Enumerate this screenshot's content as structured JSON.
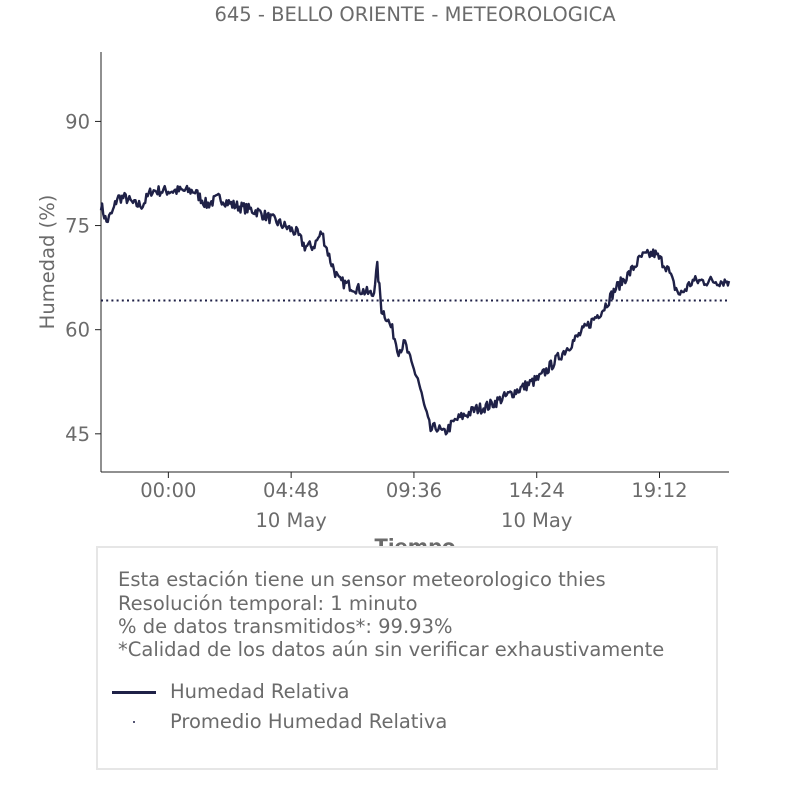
{
  "chart_data": {
    "type": "line",
    "title": "645 - BELLO ORIENTE - METEOROLOGICA",
    "xlabel": "Tiempo",
    "ylabel": "Humedad (%)",
    "ylim": [
      39.5,
      100
    ],
    "xlim": [
      "2023-05-09 21:22",
      "2023-05-10 21:55"
    ],
    "y_ticks": [
      45,
      60,
      75,
      90
    ],
    "y_tick_labels": [
      "45",
      "60",
      "75",
      "90"
    ],
    "x_ticks": [
      {
        "at": "2023-05-10 00:00",
        "label": "00:00",
        "sub": ""
      },
      {
        "at": "2023-05-10 04:48",
        "label": "04:48",
        "sub": "10 May"
      },
      {
        "at": "2023-05-10 09:36",
        "label": "09:36",
        "sub": ""
      },
      {
        "at": "2023-05-10 14:24",
        "label": "14:24",
        "sub": "10 May"
      },
      {
        "at": "2023-05-10 19:12",
        "label": "19:12",
        "sub": ""
      }
    ],
    "grid": false,
    "series": [
      {
        "name": "Humedad Relativa",
        "color": "#1f2147",
        "style": "solid",
        "x": [
          "2023-05-09 21:22",
          "2023-05-09 21:35",
          "2023-05-09 21:50",
          "2023-05-09 22:00",
          "2023-05-09 22:20",
          "2023-05-09 22:40",
          "2023-05-09 23:00",
          "2023-05-09 23:20",
          "2023-05-09 23:40",
          "2023-05-10 00:00",
          "2023-05-10 00:30",
          "2023-05-10 01:00",
          "2023-05-10 01:30",
          "2023-05-10 02:00",
          "2023-05-10 02:30",
          "2023-05-10 03:00",
          "2023-05-10 03:30",
          "2023-05-10 04:00",
          "2023-05-10 04:30",
          "2023-05-10 05:00",
          "2023-05-10 05:20",
          "2023-05-10 05:40",
          "2023-05-10 06:00",
          "2023-05-10 06:20",
          "2023-05-10 06:40",
          "2023-05-10 07:00",
          "2023-05-10 07:20",
          "2023-05-10 07:40",
          "2023-05-10 08:00",
          "2023-05-10 08:10",
          "2023-05-10 08:20",
          "2023-05-10 08:30",
          "2023-05-10 08:45",
          "2023-05-10 09:00",
          "2023-05-10 09:15",
          "2023-05-10 09:30",
          "2023-05-10 09:45",
          "2023-05-10 10:00",
          "2023-05-10 10:15",
          "2023-05-10 10:30",
          "2023-05-10 10:45",
          "2023-05-10 11:00",
          "2023-05-10 11:15",
          "2023-05-10 11:30",
          "2023-05-10 11:45",
          "2023-05-10 12:00",
          "2023-05-10 12:30",
          "2023-05-10 13:00",
          "2023-05-10 13:30",
          "2023-05-10 14:00",
          "2023-05-10 14:30",
          "2023-05-10 15:00",
          "2023-05-10 15:30",
          "2023-05-10 16:00",
          "2023-05-10 16:30",
          "2023-05-10 17:00",
          "2023-05-10 17:30",
          "2023-05-10 18:00",
          "2023-05-10 18:30",
          "2023-05-10 19:00",
          "2023-05-10 19:30",
          "2023-05-10 19:45",
          "2023-05-10 20:00",
          "2023-05-10 20:15",
          "2023-05-10 20:30",
          "2023-05-10 20:45",
          "2023-05-10 21:00",
          "2023-05-10 21:15",
          "2023-05-10 21:30",
          "2023-05-10 21:45",
          "2023-05-10 21:55"
        ],
        "values": [
          78,
          75.5,
          77,
          79,
          79,
          78,
          78,
          80,
          80,
          80,
          80,
          80,
          78,
          79,
          78,
          77.5,
          77,
          76,
          75,
          74,
          72,
          72,
          74,
          70,
          67,
          66.5,
          66,
          65.5,
          65,
          69,
          63,
          62,
          60,
          57,
          58,
          55,
          53,
          49,
          45.5,
          46,
          45,
          46,
          47,
          47.5,
          48,
          48.5,
          49,
          50,
          51,
          52,
          53,
          55,
          57,
          59,
          61,
          63,
          66,
          68,
          70.5,
          71,
          69,
          66.5,
          65,
          66,
          67,
          67,
          67,
          67,
          67,
          67,
          67
        ]
      },
      {
        "name": "Promedio Humedad Relativa",
        "color": "#1f2147",
        "style": "dotted",
        "value": 64.2
      }
    ]
  },
  "info": {
    "line1": "Esta estación tiene un sensor meteorologico thies",
    "line2": "Resolución temporal: 1 minuto",
    "line3": "% de datos transmitidos*: 99.93%",
    "line4": "*Calidad de los datos aún sin verificar exhaustivamente"
  },
  "legend": {
    "line_label": "Humedad Relativa",
    "avg_label": "Promedio Humedad Relativa"
  }
}
